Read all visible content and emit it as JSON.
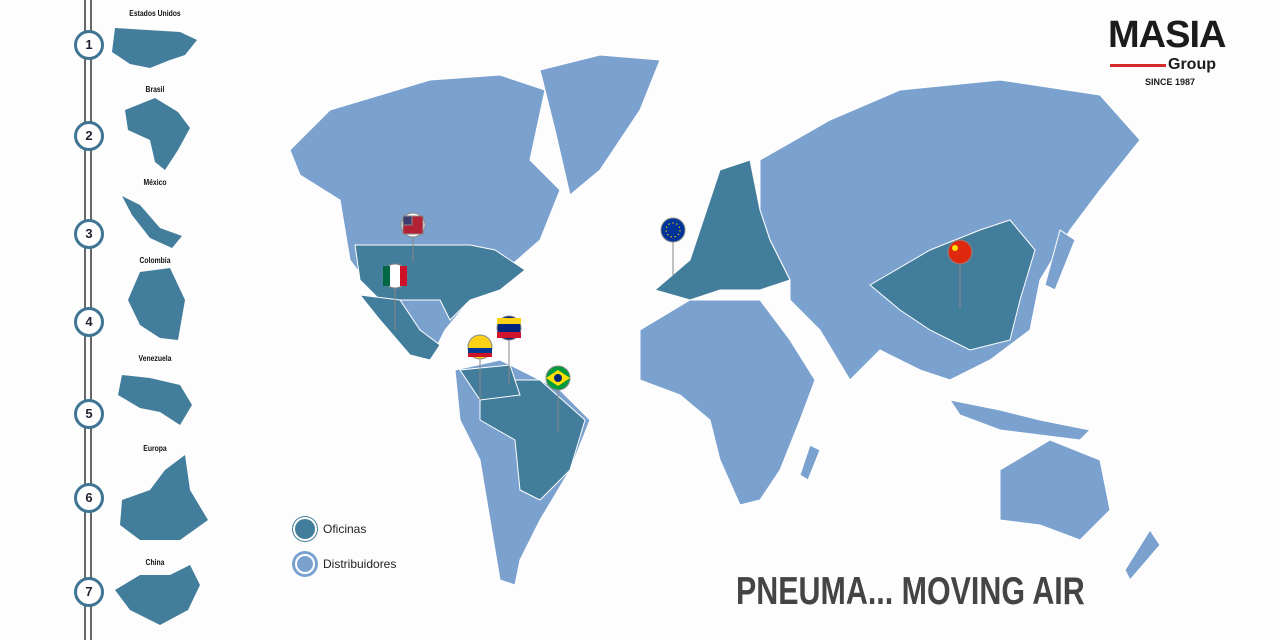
{
  "logo": {
    "name": "MASIA",
    "sub": "Group",
    "since": "SINCE 1987"
  },
  "timeline": [
    {
      "num": "1",
      "country": "Estados Unidos"
    },
    {
      "num": "2",
      "country": "Brasil"
    },
    {
      "num": "3",
      "country": "México"
    },
    {
      "num": "4",
      "country": "Colombia"
    },
    {
      "num": "5",
      "country": "Venezuela"
    },
    {
      "num": "6",
      "country": "Europa"
    },
    {
      "num": "7",
      "country": "China"
    }
  ],
  "legend": {
    "offices": "Oficinas",
    "distributors": "Distribuidores"
  },
  "slogan": "PNEUMA... MOVING AIR",
  "colors": {
    "offices": "#437d9c",
    "distributors": "#7ba2cf",
    "accent": "#d42a2a"
  },
  "pins": [
    "usa-flag",
    "mexico-flag",
    "colombia-flag",
    "venezuela-flag",
    "brazil-flag",
    "eu-flag",
    "china-flag"
  ]
}
